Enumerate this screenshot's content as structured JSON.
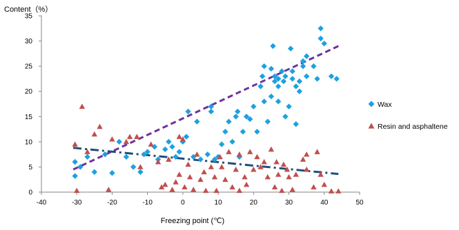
{
  "chart_data": {
    "type": "scatter",
    "title": "",
    "xlabel": "Freezing point (℃)",
    "ylabel": "Content（%）",
    "xlim": [
      -40,
      50
    ],
    "ylim": [
      0,
      35
    ],
    "x_ticks": [
      -40,
      -30,
      -20,
      -10,
      0,
      10,
      20,
      30,
      40,
      50
    ],
    "y_ticks": [
      0,
      5,
      10,
      15,
      20,
      25,
      30,
      35
    ],
    "grid": "none",
    "legend_position": "right",
    "series": [
      {
        "name": "Wax",
        "marker": "diamond",
        "color": "#1ea0e0",
        "points": [
          [
            -30.5,
            3.2
          ],
          [
            -30.5,
            6.0
          ],
          [
            -29,
            5.0
          ],
          [
            -27,
            7.0
          ],
          [
            -25,
            4.0
          ],
          [
            -22,
            7.5
          ],
          [
            -20,
            3.8
          ],
          [
            -18,
            10.0
          ],
          [
            -16,
            7.0
          ],
          [
            -14,
            5.0
          ],
          [
            -12,
            4.0
          ],
          [
            -11,
            7.5
          ],
          [
            -10,
            8.0
          ],
          [
            -8,
            9.0
          ],
          [
            -7,
            6.5
          ],
          [
            -5,
            8.5
          ],
          [
            -4,
            10.0
          ],
          [
            -3,
            9.0
          ],
          [
            -2,
            7.0
          ],
          [
            -1,
            8.0
          ],
          [
            0,
            10.0
          ],
          [
            1,
            11.0
          ],
          [
            1.5,
            16.0
          ],
          [
            3,
            7.0
          ],
          [
            4,
            14.0
          ],
          [
            5,
            6.5
          ],
          [
            7,
            7.5
          ],
          [
            8,
            16.0
          ],
          [
            8,
            17.0
          ],
          [
            9,
            6.5
          ],
          [
            10,
            7.0
          ],
          [
            11,
            9.5
          ],
          [
            12,
            12.0
          ],
          [
            13,
            14.0
          ],
          [
            14,
            10.0
          ],
          [
            15,
            15.0
          ],
          [
            15.5,
            16.0
          ],
          [
            16,
            7.0
          ],
          [
            17,
            12.0
          ],
          [
            18,
            15.0
          ],
          [
            19,
            14.5
          ],
          [
            20,
            17.0
          ],
          [
            21,
            12.0
          ],
          [
            22,
            21.0
          ],
          [
            22.5,
            23.0
          ],
          [
            23,
            18.0
          ],
          [
            23,
            25.0
          ],
          [
            24,
            14.0
          ],
          [
            25,
            19.0
          ],
          [
            25,
            24.5
          ],
          [
            25.5,
            29.0
          ],
          [
            26,
            22.0
          ],
          [
            26,
            23.0
          ],
          [
            27,
            18.0
          ],
          [
            27,
            21.0
          ],
          [
            27,
            22.5
          ],
          [
            28,
            24.0
          ],
          [
            28.5,
            22.0
          ],
          [
            29,
            15.0
          ],
          [
            29,
            23.0
          ],
          [
            30,
            17.0
          ],
          [
            30.5,
            28.5
          ],
          [
            31,
            24.0
          ],
          [
            31,
            22.5
          ],
          [
            32,
            13.5
          ],
          [
            32,
            21.0
          ],
          [
            33,
            20.0
          ],
          [
            33,
            22.0
          ],
          [
            34,
            25.0
          ],
          [
            34,
            26.0
          ],
          [
            35,
            27.0
          ],
          [
            35,
            23.0
          ],
          [
            37,
            25.0
          ],
          [
            38,
            22.5
          ],
          [
            39,
            32.5
          ],
          [
            39,
            30.5
          ],
          [
            40,
            29.5
          ],
          [
            42,
            23.0
          ],
          [
            43.5,
            22.5
          ]
        ]
      },
      {
        "name": "Resin and asphaltene",
        "marker": "triangle",
        "color": "#c0504d",
        "points": [
          [
            -30.5,
            9.5
          ],
          [
            -30,
            0.3
          ],
          [
            -28.5,
            17.0
          ],
          [
            -27,
            8.0
          ],
          [
            -25,
            11.5
          ],
          [
            -23.5,
            13.0
          ],
          [
            -21,
            0.5
          ],
          [
            -20,
            10.5
          ],
          [
            -16,
            10.0
          ],
          [
            -15,
            11.0
          ],
          [
            -13,
            11.0
          ],
          [
            -12,
            5.0
          ],
          [
            -9,
            9.5
          ],
          [
            -7,
            6.0
          ],
          [
            -6,
            1.0
          ],
          [
            -5,
            1.5
          ],
          [
            -4,
            6.5
          ],
          [
            -3,
            0.5
          ],
          [
            -2,
            2.0
          ],
          [
            -1,
            3.5
          ],
          [
            -1,
            11.0
          ],
          [
            0,
            10.5
          ],
          [
            0.5,
            1.0
          ],
          [
            1.5,
            5.5
          ],
          [
            2,
            3.0
          ],
          [
            3,
            0.5
          ],
          [
            4,
            7.5
          ],
          [
            5,
            2.5
          ],
          [
            6,
            4.0
          ],
          [
            6.5,
            0.3
          ],
          [
            8,
            5.0
          ],
          [
            9,
            3.0
          ],
          [
            9.5,
            0.3
          ],
          [
            10.5,
            7.0
          ],
          [
            11,
            5.0
          ],
          [
            12,
            2.5
          ],
          [
            13,
            8.0
          ],
          [
            14,
            1.0
          ],
          [
            15,
            4.5
          ],
          [
            16,
            0.3
          ],
          [
            16,
            7.5
          ],
          [
            17.5,
            3.0
          ],
          [
            18,
            1.5
          ],
          [
            19,
            8.0
          ],
          [
            20,
            4.5
          ],
          [
            21,
            7.0
          ],
          [
            22,
            5.0
          ],
          [
            23,
            6.0
          ],
          [
            24,
            3.0
          ],
          [
            25,
            8.5
          ],
          [
            26,
            1.0
          ],
          [
            26.5,
            6.0
          ],
          [
            27,
            3.5
          ],
          [
            28,
            0.3
          ],
          [
            28.5,
            5.5
          ],
          [
            29.5,
            4.5
          ],
          [
            30,
            3.0
          ],
          [
            31,
            0.5
          ],
          [
            32,
            3.5
          ],
          [
            34,
            6.5
          ],
          [
            35,
            4.5
          ],
          [
            35,
            7.5
          ],
          [
            37,
            1.0
          ],
          [
            38,
            8.0
          ],
          [
            39,
            3.5
          ],
          [
            40,
            1.5
          ],
          [
            42,
            0.2
          ],
          [
            44,
            0.2
          ]
        ]
      }
    ],
    "trendlines": [
      {
        "series": "Wax",
        "style": "dashed",
        "color": "#7030a0",
        "from": [
          -31,
          4.5
        ],
        "to": [
          44,
          29.0
        ]
      },
      {
        "series": "Resin and asphaltene",
        "style": "dash-dot",
        "color": "#1f4e79",
        "from": [
          -31,
          8.8
        ],
        "to": [
          44,
          3.6
        ]
      }
    ]
  }
}
